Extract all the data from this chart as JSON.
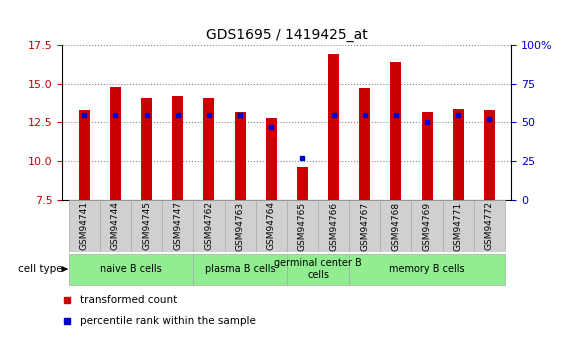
{
  "title": "GDS1695 / 1419425_at",
  "samples": [
    "GSM94741",
    "GSM94744",
    "GSM94745",
    "GSM94747",
    "GSM94762",
    "GSM94763",
    "GSM94764",
    "GSM94765",
    "GSM94766",
    "GSM94767",
    "GSM94768",
    "GSM94769",
    "GSM94771",
    "GSM94772"
  ],
  "transformed_count": [
    13.3,
    14.8,
    14.1,
    14.2,
    14.1,
    13.2,
    12.8,
    9.6,
    16.9,
    14.7,
    16.4,
    13.2,
    13.4,
    13.3
  ],
  "percentile_rank": [
    55,
    55,
    55,
    55,
    55,
    55,
    47,
    27,
    55,
    55,
    55,
    50,
    55,
    52
  ],
  "ylim_left": [
    7.5,
    17.5
  ],
  "ylim_right": [
    0,
    100
  ],
  "yticks_left": [
    7.5,
    10.0,
    12.5,
    15.0,
    17.5
  ],
  "yticks_right": [
    0,
    25,
    50,
    75,
    100
  ],
  "ytick_labels_right": [
    "0",
    "25",
    "50",
    "75",
    "100%"
  ],
  "bar_color": "#cc0000",
  "dot_color": "#0000cc",
  "background_color": "#ffffff",
  "plot_bg_color": "#ffffff",
  "tick_box_color": "#d0d0d0",
  "cell_groups": [
    {
      "label": "naive B cells",
      "start": 0,
      "end": 3,
      "color": "#90ee90"
    },
    {
      "label": "plasma B cells",
      "start": 4,
      "end": 6,
      "color": "#90ee90"
    },
    {
      "label": "germinal center B\ncells",
      "start": 7,
      "end": 8,
      "color": "#90ee90"
    },
    {
      "label": "memory B cells",
      "start": 9,
      "end": 13,
      "color": "#90ee90"
    }
  ],
  "legend_items": [
    {
      "label": "transformed count",
      "color": "#cc0000"
    },
    {
      "label": "percentile rank within the sample",
      "color": "#0000cc"
    }
  ],
  "xlabel_color": "#cc0000",
  "ylabel_right_color": "#0000cc",
  "grid_style": "dotted",
  "grid_color": "#888888"
}
